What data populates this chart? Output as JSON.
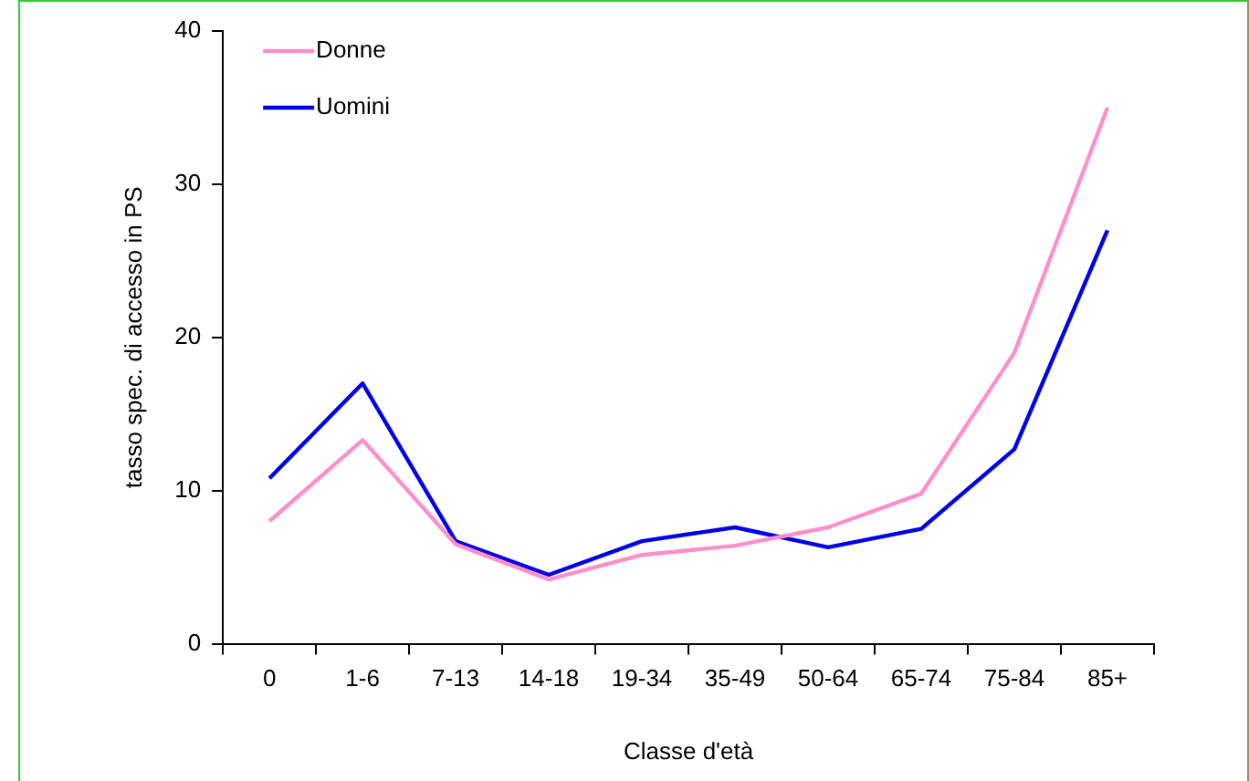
{
  "chart_data": {
    "type": "line",
    "xlabel": "Classe d'età",
    "ylabel": "tasso spec. di accesso in PS",
    "categories": [
      "0",
      "1-6",
      "7-13",
      "14-18",
      "19-34",
      "35-49",
      "50-64",
      "65-74",
      "75-84",
      "85+"
    ],
    "series": [
      {
        "name": "Donne",
        "color": "#ff8fc8",
        "values": [
          8,
          13.3,
          6.5,
          4.2,
          5.8,
          6.4,
          7.6,
          9.8,
          19,
          35
        ]
      },
      {
        "name": "Uomini",
        "color": "#0000ee",
        "values": [
          10.8,
          17,
          6.7,
          4.5,
          6.7,
          7.6,
          6.3,
          7.5,
          12.7,
          27
        ]
      }
    ],
    "ylim": [
      0,
      40
    ],
    "yticks": [
      0,
      10,
      20,
      30,
      40
    ],
    "grid": false,
    "legend": "top left",
    "marker": "none",
    "line_style": "solid"
  }
}
